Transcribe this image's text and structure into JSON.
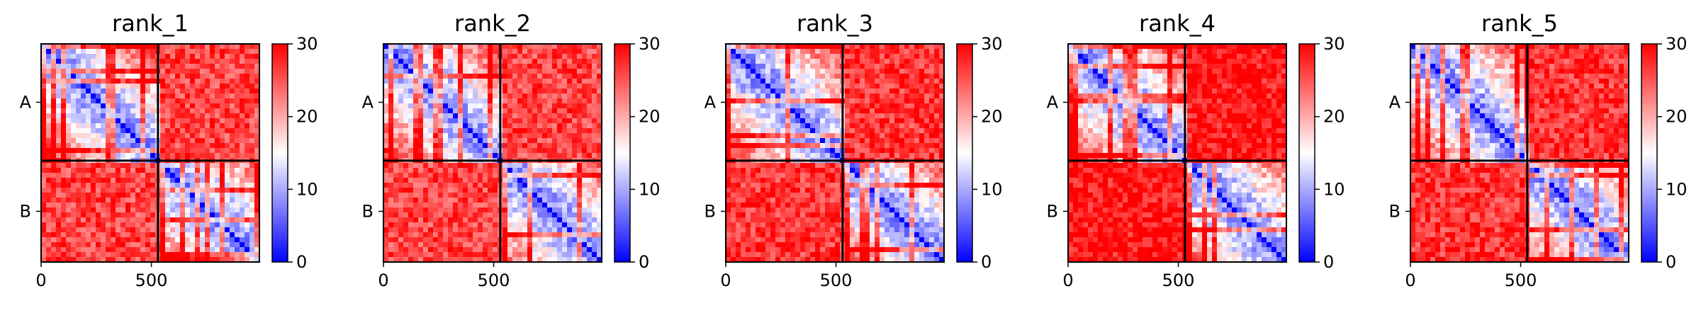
{
  "chart_data": [
    {
      "type": "heatmap",
      "title": "rank_1",
      "chains": [
        "A",
        "B"
      ],
      "chain_boundary": 530,
      "x_ticks": [
        0,
        500
      ],
      "xlim": [
        0,
        990
      ],
      "colorbar": {
        "ticks": [
          0,
          10,
          20,
          30
        ],
        "range": [
          0,
          30
        ],
        "colors": {
          "low": "#0000ff",
          "mid": "#ffffff",
          "high": "#ff0000"
        }
      },
      "inter_chain_mean": 26
    },
    {
      "type": "heatmap",
      "title": "rank_2",
      "chains": [
        "A",
        "B"
      ],
      "chain_boundary": 530,
      "x_ticks": [
        0,
        500
      ],
      "xlim": [
        0,
        990
      ],
      "colorbar": {
        "ticks": [
          0,
          10,
          20,
          30
        ],
        "range": [
          0,
          30
        ],
        "colors": {
          "low": "#0000ff",
          "mid": "#ffffff",
          "high": "#ff0000"
        }
      },
      "inter_chain_mean": 26
    },
    {
      "type": "heatmap",
      "title": "rank_3",
      "chains": [
        "A",
        "B"
      ],
      "chain_boundary": 530,
      "x_ticks": [
        0,
        500
      ],
      "xlim": [
        0,
        990
      ],
      "colorbar": {
        "ticks": [
          0,
          10,
          20,
          30
        ],
        "range": [
          0,
          30
        ],
        "colors": {
          "low": "#0000ff",
          "mid": "#ffffff",
          "high": "#ff0000"
        }
      },
      "inter_chain_mean": 27
    },
    {
      "type": "heatmap",
      "title": "rank_4",
      "chains": [
        "A",
        "B"
      ],
      "chain_boundary": 530,
      "x_ticks": [
        0,
        500
      ],
      "xlim": [
        0,
        990
      ],
      "colorbar": {
        "ticks": [
          0,
          10,
          20,
          30
        ],
        "range": [
          0,
          30
        ],
        "colors": {
          "low": "#0000ff",
          "mid": "#ffffff",
          "high": "#ff0000"
        }
      },
      "inter_chain_mean": 29
    },
    {
      "type": "heatmap",
      "title": "rank_5",
      "chains": [
        "A",
        "B"
      ],
      "chain_boundary": 530,
      "x_ticks": [
        0,
        500
      ],
      "xlim": [
        0,
        990
      ],
      "colorbar": {
        "ticks": [
          0,
          10,
          20,
          30
        ],
        "range": [
          0,
          30
        ],
        "colors": {
          "low": "#0000ff",
          "mid": "#ffffff",
          "high": "#ff0000"
        }
      },
      "inter_chain_mean": 27
    }
  ]
}
